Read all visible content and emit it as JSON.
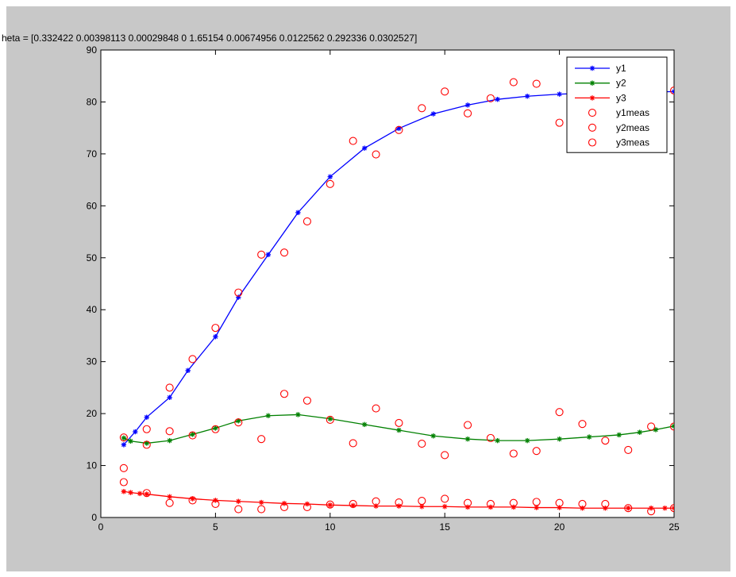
{
  "figure": {
    "background": "#c8c8c8",
    "axes_background": "#ffffff"
  },
  "chart_data": {
    "type": "line",
    "title": "heta = [0.332422 0.00398113 0.00029848 0 1.65154 0.00674956 0.0122562 0.292336 0.0302527]",
    "xlabel": "",
    "ylabel": "",
    "xlim": [
      0,
      25
    ],
    "ylim": [
      0,
      90
    ],
    "xticks": [
      "0",
      "5",
      "10",
      "15",
      "20",
      "25"
    ],
    "yticks": [
      "0",
      "10",
      "20",
      "30",
      "40",
      "50",
      "60",
      "70",
      "80",
      "90"
    ],
    "grid": false,
    "legend_position": "top-right",
    "series": [
      {
        "name": "y1",
        "kind": "line",
        "marker": "star",
        "color": "#0000ff",
        "x": [
          1,
          1.5,
          2,
          3,
          3.8,
          5,
          6,
          7.3,
          8.6,
          10,
          11.5,
          13,
          14.5,
          16,
          17.3,
          18.6,
          20,
          21.3,
          22.6,
          24,
          25
        ],
        "y": [
          14,
          16.5,
          19.3,
          23.1,
          28.3,
          34.8,
          42.4,
          50.6,
          58.7,
          65.6,
          71.1,
          74.9,
          77.7,
          79.4,
          80.5,
          81.1,
          81.5,
          81.7,
          81.8,
          81.9,
          82
        ]
      },
      {
        "name": "y2",
        "kind": "line",
        "marker": "star",
        "color": "#008000",
        "x": [
          1,
          1.3,
          2,
          3,
          4,
          5,
          6,
          7.3,
          8.6,
          10,
          11.5,
          13,
          14.5,
          16,
          17.3,
          18.6,
          20,
          21.3,
          22.6,
          23.5,
          24.2,
          25
        ],
        "y": [
          15.3,
          14.7,
          14.3,
          14.8,
          16,
          17.2,
          18.6,
          19.6,
          19.8,
          19,
          17.9,
          16.8,
          15.7,
          15.1,
          14.8,
          14.8,
          15.1,
          15.5,
          15.9,
          16.4,
          16.9,
          17.6
        ]
      },
      {
        "name": "y3",
        "kind": "line",
        "marker": "star",
        "color": "#ff0000",
        "x": [
          1,
          1.3,
          1.7,
          2,
          3,
          4,
          5,
          6,
          7,
          8,
          9,
          10,
          11,
          12,
          13,
          14,
          15,
          16,
          17,
          18,
          19,
          20,
          21,
          22,
          23,
          24,
          24.6,
          25
        ],
        "y": [
          5,
          4.8,
          4.6,
          4.5,
          4,
          3.6,
          3.3,
          3.1,
          2.9,
          2.7,
          2.6,
          2.4,
          2.3,
          2.2,
          2.2,
          2.1,
          2.1,
          2,
          2,
          2,
          1.9,
          1.9,
          1.8,
          1.8,
          1.8,
          1.8,
          1.8,
          1.8
        ]
      },
      {
        "name": "y1meas",
        "kind": "scatter",
        "marker": "circle",
        "color": "#ff0000",
        "x": [
          1,
          2,
          3,
          4,
          5,
          6,
          7,
          8,
          9,
          10,
          11,
          12,
          13,
          14,
          15,
          16,
          17,
          18,
          19,
          20,
          21,
          22,
          23,
          24,
          25
        ],
        "y": [
          9.5,
          17,
          25,
          30.5,
          36.5,
          43.3,
          50.6,
          51,
          57,
          64.2,
          72.5,
          69.9,
          74.6,
          78.8,
          82,
          77.8,
          80.7,
          83.8,
          83.5,
          76,
          84.5,
          84.8,
          82.5,
          82.2,
          82.2
        ]
      },
      {
        "name": "y2meas",
        "kind": "scatter",
        "marker": "circle",
        "color": "#ff0000",
        "x": [
          1,
          2,
          3,
          4,
          5,
          6,
          7,
          8,
          9,
          10,
          11,
          12,
          13,
          14,
          15,
          16,
          17,
          18,
          19,
          20,
          21,
          22,
          23,
          24,
          25
        ],
        "y": [
          15.4,
          14,
          16.6,
          15.8,
          17,
          18.3,
          15.1,
          23.8,
          22.5,
          18.8,
          14.3,
          21,
          18.2,
          14.2,
          12,
          17.8,
          15.3,
          12.3,
          12.8,
          20.3,
          18,
          14.8,
          13,
          17.5,
          17.5
        ]
      },
      {
        "name": "y3meas",
        "kind": "scatter",
        "marker": "circle",
        "color": "#ff0000",
        "x": [
          1,
          2,
          3,
          4,
          5,
          6,
          7,
          8,
          9,
          10,
          11,
          12,
          13,
          14,
          15,
          16,
          17,
          18,
          19,
          20,
          21,
          22,
          23,
          24,
          25
        ],
        "y": [
          6.8,
          4.7,
          2.8,
          3.3,
          2.6,
          1.6,
          1.6,
          2,
          2,
          2.5,
          2.6,
          3.1,
          2.9,
          3.2,
          3.6,
          2.8,
          2.6,
          2.8,
          3,
          2.8,
          2.6,
          2.6,
          1.8,
          1.2,
          1.8
        ]
      }
    ]
  }
}
